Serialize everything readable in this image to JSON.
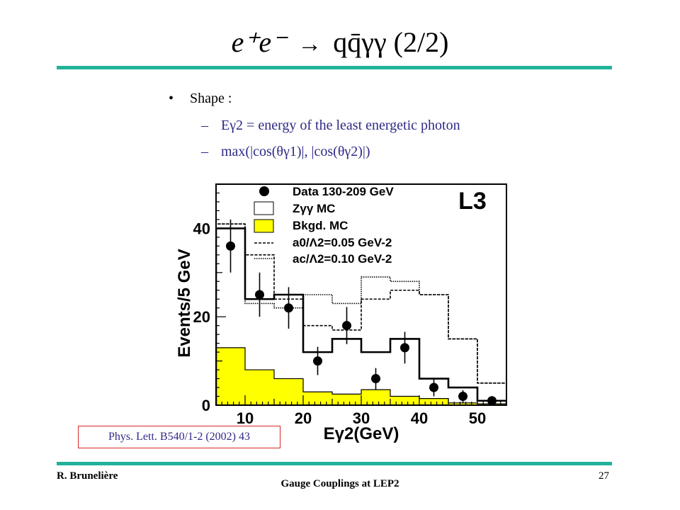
{
  "slide": {
    "title_lhs": "e⁺e⁻",
    "title_arrow": "→",
    "title_rhs": "qq̄γγ",
    "title_part": "(2/2)",
    "bullet": "Shape :",
    "sub1": "Eγ2 = energy of the least energetic photon",
    "sub2": "max(|cos(θγ1)|, |cos(θγ2)|)",
    "reference": "Phys. Lett. B540/1-2 (2002) 43",
    "author": "R. Brunelière",
    "footer_title": "Gauge Couplings at LEP2",
    "page_number": "27",
    "accent_color": "#20b39a"
  },
  "chart_data": {
    "type": "bar",
    "xlabel": "Eγ2(GeV)",
    "ylabel": "Events/5 GeV",
    "experiment": "L3",
    "xlim": [
      5,
      55
    ],
    "ylim": [
      0,
      50
    ],
    "xticks": [
      10,
      20,
      30,
      40,
      50
    ],
    "yticks": [
      0,
      20,
      40
    ],
    "bin_edges": [
      5,
      10,
      15,
      20,
      25,
      30,
      35,
      40,
      45,
      50,
      55
    ],
    "legend": [
      {
        "key": "data",
        "label": "Data 130-209 GeV"
      },
      {
        "key": "zgg",
        "label": "Zγγ MC"
      },
      {
        "key": "bkgd",
        "label": "Bkgd. MC"
      },
      {
        "key": "a0",
        "label": "a0/Λ2=0.05 GeV-2"
      },
      {
        "key": "ac",
        "label": "ac/Λ2=0.10 GeV-2"
      }
    ],
    "legend_position": "top-right",
    "series": [
      {
        "name": "Data 130-209 GeV",
        "style": "points",
        "x": [
          7.5,
          12.5,
          17.5,
          22.5,
          27.5,
          32.5,
          37.5,
          42.5,
          47.5,
          52.5
        ],
        "values": [
          36,
          25,
          22,
          10,
          18,
          6,
          13,
          4,
          2,
          1
        ],
        "errors": [
          6,
          5,
          4.7,
          3.2,
          4.2,
          2.4,
          3.6,
          2,
          1.4,
          1
        ]
      },
      {
        "name": "Zγγ MC",
        "style": "step-solid",
        "values": [
          40,
          24,
          25,
          12,
          15,
          12,
          15,
          6,
          4,
          1
        ]
      },
      {
        "name": "Bkgd. MC",
        "style": "filled",
        "color": "#ffff00",
        "values": [
          13,
          8,
          6,
          3,
          2.5,
          3.5,
          2,
          1.5,
          0.5,
          0.3
        ]
      },
      {
        "name": "a0/Λ2=0.05 GeV-2",
        "style": "step-dashed",
        "values": [
          41,
          34,
          24,
          18,
          17,
          24,
          26,
          25,
          15,
          5
        ]
      },
      {
        "name": "ac/Λ2=0.10 GeV-2",
        "style": "step-dotted",
        "values": [
          41,
          23,
          22,
          25,
          23,
          29,
          28,
          25,
          15,
          5
        ]
      }
    ]
  }
}
